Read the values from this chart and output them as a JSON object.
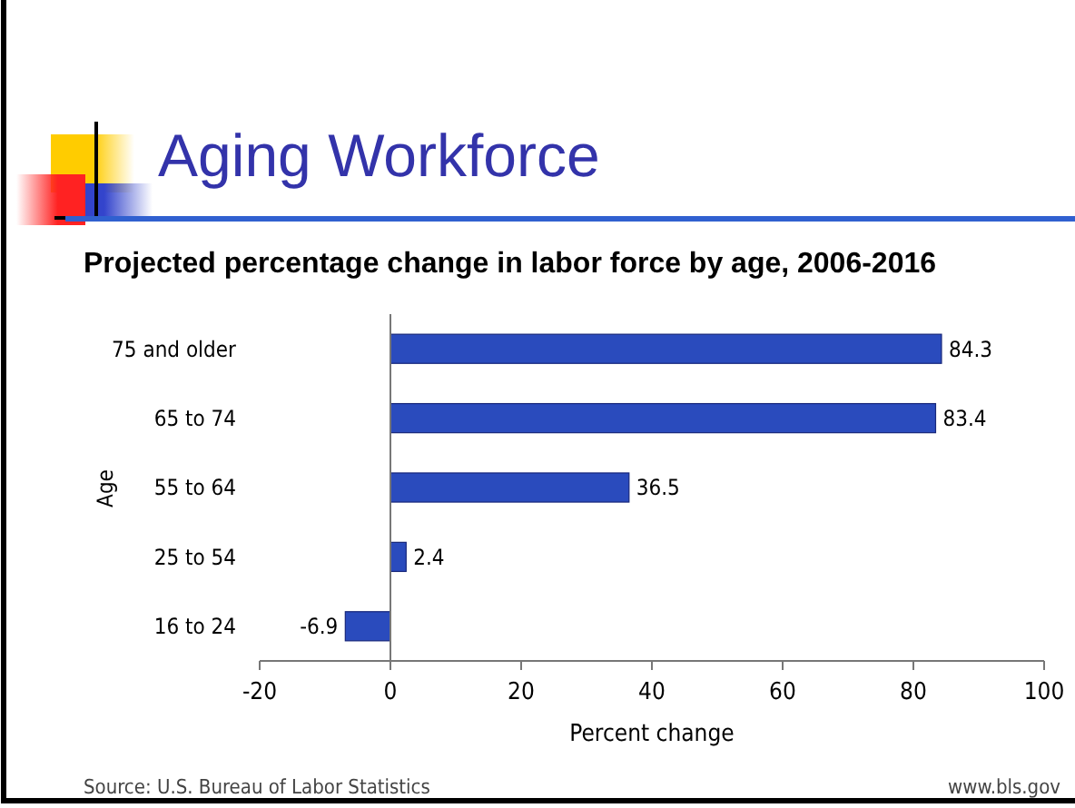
{
  "chart_data": {
    "type": "bar",
    "orientation": "horizontal",
    "title": "Aging Workforce",
    "subtitle": "Projected percentage change in labor force by age, 2006-2016",
    "categories": [
      "75 and older",
      "65 to 74",
      "55 to 64",
      "25 to 54",
      "16 to 24"
    ],
    "values": [
      84.3,
      83.4,
      36.5,
      2.4,
      -6.9
    ],
    "color": "#2a4bbd",
    "data_labels": true,
    "xlim": [
      -20,
      100
    ],
    "xticks": [
      -20,
      0,
      20,
      40,
      60,
      80,
      100
    ],
    "xlabel": "Percent change",
    "ylabel": "Age",
    "annotations": [
      "Source: U.S. Bureau of Labor Statistics",
      "www.bls.gov"
    ]
  }
}
